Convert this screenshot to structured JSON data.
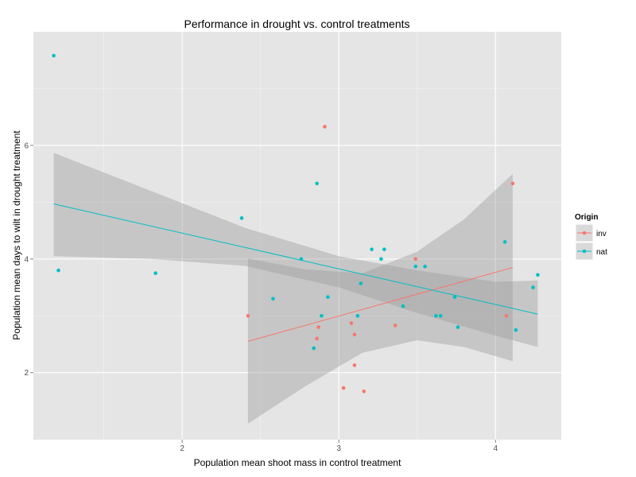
{
  "chart_data": {
    "type": "scatter",
    "title": "Performance in drought vs. control treatments",
    "xlabel": "Population mean shoot mass in control treatment",
    "ylabel": "Population mean days to wilt in drought treatment",
    "xlim": [
      1.05,
      4.42
    ],
    "ylim": [
      0.82,
      8.0
    ],
    "x_ticks": [
      2,
      3,
      4
    ],
    "x_minor_ticks": [
      1.5,
      2.5,
      3.5
    ],
    "y_ticks": [
      2,
      4,
      6
    ],
    "y_minor_ticks": [
      3,
      5,
      7
    ],
    "grid": true,
    "legend": {
      "title": "Origin",
      "position": "right"
    },
    "series": [
      {
        "name": "inv",
        "color": "#F8766D",
        "points": [
          {
            "x": 2.42,
            "y": 3.0
          },
          {
            "x": 2.86,
            "y": 2.6
          },
          {
            "x": 2.87,
            "y": 2.8
          },
          {
            "x": 2.91,
            "y": 6.33
          },
          {
            "x": 3.03,
            "y": 1.73
          },
          {
            "x": 3.08,
            "y": 2.87
          },
          {
            "x": 3.1,
            "y": 2.67
          },
          {
            "x": 3.1,
            "y": 2.13
          },
          {
            "x": 3.16,
            "y": 1.67
          },
          {
            "x": 3.36,
            "y": 2.83
          },
          {
            "x": 3.49,
            "y": 4.0
          },
          {
            "x": 4.07,
            "y": 3.0
          },
          {
            "x": 4.11,
            "y": 5.33
          }
        ],
        "fit": {
          "x": [
            2.42,
            4.11
          ],
          "y": [
            2.55,
            3.85
          ]
        },
        "band": {
          "x": [
            2.42,
            2.78,
            3.15,
            3.5,
            3.8,
            4.11
          ],
          "lower": [
            1.1,
            1.75,
            2.35,
            2.57,
            2.45,
            2.2
          ],
          "upper": [
            4.01,
            3.82,
            3.75,
            4.13,
            4.7,
            5.5
          ]
        }
      },
      {
        "name": "nat",
        "color": "#00BFC4",
        "points": [
          {
            "x": 1.18,
            "y": 7.58
          },
          {
            "x": 1.21,
            "y": 3.8
          },
          {
            "x": 1.83,
            "y": 3.75
          },
          {
            "x": 2.38,
            "y": 4.72
          },
          {
            "x": 2.58,
            "y": 3.3
          },
          {
            "x": 2.76,
            "y": 4.0
          },
          {
            "x": 2.84,
            "y": 2.43
          },
          {
            "x": 2.86,
            "y": 5.33
          },
          {
            "x": 2.89,
            "y": 3.0
          },
          {
            "x": 2.93,
            "y": 3.33
          },
          {
            "x": 3.12,
            "y": 3.0
          },
          {
            "x": 3.14,
            "y": 3.57
          },
          {
            "x": 3.21,
            "y": 4.17
          },
          {
            "x": 3.27,
            "y": 4.0
          },
          {
            "x": 3.29,
            "y": 4.17
          },
          {
            "x": 3.41,
            "y": 3.17
          },
          {
            "x": 3.49,
            "y": 3.87
          },
          {
            "x": 3.55,
            "y": 3.87
          },
          {
            "x": 3.62,
            "y": 3.0
          },
          {
            "x": 3.65,
            "y": 3.0
          },
          {
            "x": 3.74,
            "y": 3.33
          },
          {
            "x": 3.76,
            "y": 2.8
          },
          {
            "x": 4.06,
            "y": 4.3
          },
          {
            "x": 4.24,
            "y": 3.5
          },
          {
            "x": 4.13,
            "y": 2.75
          },
          {
            "x": 4.27,
            "y": 3.72
          }
        ],
        "fit": {
          "x": [
            1.18,
            4.27
          ],
          "y": [
            4.97,
            3.03
          ]
        },
        "band": {
          "x": [
            1.18,
            1.8,
            2.4,
            3.0,
            3.5,
            4.0,
            4.27
          ],
          "lower": [
            4.05,
            4.0,
            3.88,
            3.5,
            3.05,
            2.65,
            2.45
          ],
          "upper": [
            5.87,
            5.2,
            4.55,
            4.05,
            3.8,
            3.6,
            3.62
          ]
        }
      }
    ]
  }
}
